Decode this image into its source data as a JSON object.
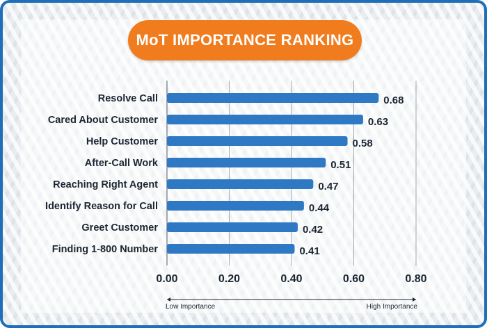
{
  "chart_data": {
    "type": "bar",
    "orientation": "horizontal",
    "title": "MoT IMPORTANCE RANKING",
    "categories": [
      "Resolve Call",
      "Cared About Customer",
      "Help Customer",
      "After-Call Work",
      "Reaching Right Agent",
      "Identify Reason for Call",
      "Greet Customer",
      "Finding 1-800 Number"
    ],
    "values": [
      0.68,
      0.63,
      0.58,
      0.51,
      0.47,
      0.44,
      0.42,
      0.41
    ],
    "value_labels": [
      "0.68",
      "0.63",
      "0.58",
      "0.51",
      "0.47",
      "0.44",
      "0.42",
      "0.41"
    ],
    "xlim": [
      0,
      0.8
    ],
    "x_ticks": [
      0,
      0.2,
      0.4,
      0.6,
      0.8
    ],
    "x_tick_labels": [
      "0.00",
      "0.20",
      "0.40",
      "0.60",
      "0.80"
    ],
    "xlabel": "",
    "ylabel": "",
    "scale_low_label": "Low Importance",
    "scale_high_label": "High Importance",
    "grid": true,
    "bar_color": "#2f78c4",
    "title_color": "#f07c1e",
    "border_color": "#1f6fb8"
  }
}
